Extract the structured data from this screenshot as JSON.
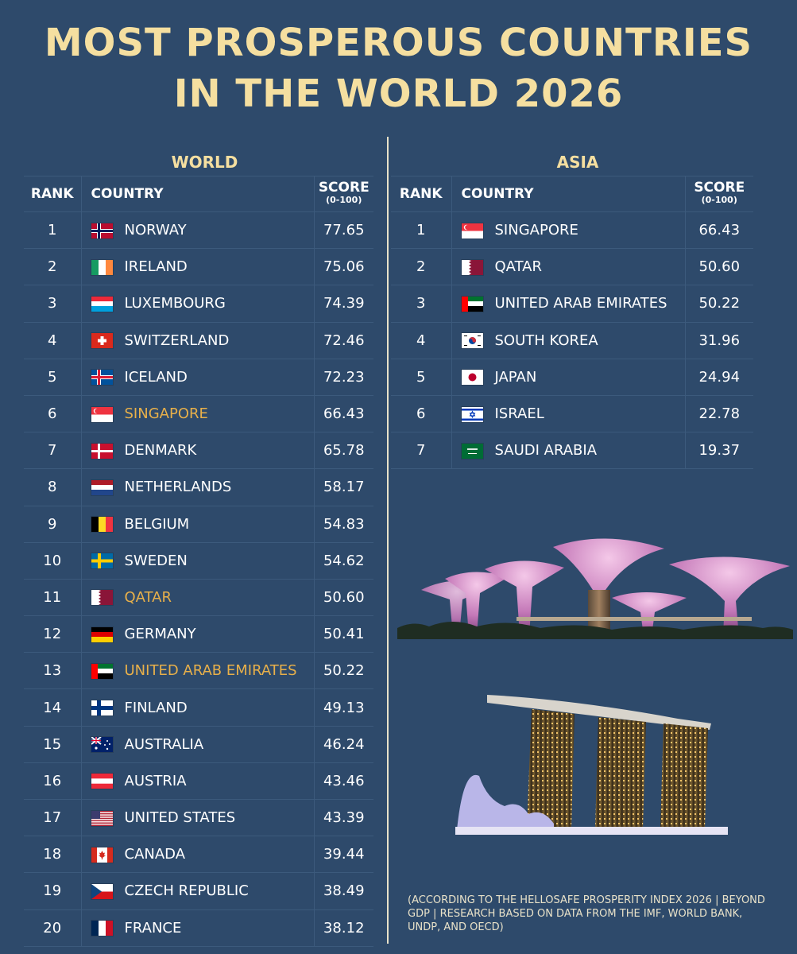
{
  "title_line1": "MOST PROSPEROUS COUNTRIES",
  "title_line2": "IN THE WORLD 2026",
  "highlight_color": "#e8b04a",
  "title_color": "#f5dfa0",
  "background_color": "#2e4a6b",
  "world": {
    "section_title": "WORLD",
    "headers": {
      "rank": "RANK",
      "country": "COUNTRY",
      "score": "SCORE",
      "score_range": "(0-100)"
    },
    "rows": [
      {
        "rank": "1",
        "country": "NORWAY",
        "score": "77.65",
        "flag": "norway-flag-icon",
        "highlight": false
      },
      {
        "rank": "2",
        "country": "IRELAND",
        "score": "75.06",
        "flag": "ireland-flag-icon",
        "highlight": false
      },
      {
        "rank": "3",
        "country": "LUXEMBOURG",
        "score": "74.39",
        "flag": "luxembourg-flag-icon",
        "highlight": false
      },
      {
        "rank": "4",
        "country": "SWITZERLAND",
        "score": "72.46",
        "flag": "switzerland-flag-icon",
        "highlight": false
      },
      {
        "rank": "5",
        "country": "ICELAND",
        "score": "72.23",
        "flag": "iceland-flag-icon",
        "highlight": false
      },
      {
        "rank": "6",
        "country": "SINGAPORE",
        "score": "66.43",
        "flag": "singapore-flag-icon",
        "highlight": true
      },
      {
        "rank": "7",
        "country": "DENMARK",
        "score": "65.78",
        "flag": "denmark-flag-icon",
        "highlight": false
      },
      {
        "rank": "8",
        "country": "NETHERLANDS",
        "score": "58.17",
        "flag": "netherlands-flag-icon",
        "highlight": false
      },
      {
        "rank": "9",
        "country": "BELGIUM",
        "score": "54.83",
        "flag": "belgium-flag-icon",
        "highlight": false
      },
      {
        "rank": "10",
        "country": "SWEDEN",
        "score": "54.62",
        "flag": "sweden-flag-icon",
        "highlight": false
      },
      {
        "rank": "11",
        "country": "QATAR",
        "score": "50.60",
        "flag": "qatar-flag-icon",
        "highlight": true
      },
      {
        "rank": "12",
        "country": "GERMANY",
        "score": "50.41",
        "flag": "germany-flag-icon",
        "highlight": false
      },
      {
        "rank": "13",
        "country": "UNITED ARAB EMIRATES",
        "score": "50.22",
        "flag": "uae-flag-icon",
        "highlight": true
      },
      {
        "rank": "14",
        "country": "FINLAND",
        "score": "49.13",
        "flag": "finland-flag-icon",
        "highlight": false
      },
      {
        "rank": "15",
        "country": "AUSTRALIA",
        "score": "46.24",
        "flag": "australia-flag-icon",
        "highlight": false
      },
      {
        "rank": "16",
        "country": "AUSTRIA",
        "score": "43.46",
        "flag": "austria-flag-icon",
        "highlight": false
      },
      {
        "rank": "17",
        "country": "UNITED STATES",
        "score": "43.39",
        "flag": "usa-flag-icon",
        "highlight": false
      },
      {
        "rank": "18",
        "country": "CANADA",
        "score": "39.44",
        "flag": "canada-flag-icon",
        "highlight": false
      },
      {
        "rank": "19",
        "country": "CZECH REPUBLIC",
        "score": "38.49",
        "flag": "czech-flag-icon",
        "highlight": false
      },
      {
        "rank": "20",
        "country": "FRANCE",
        "score": "38.12",
        "flag": "france-flag-icon",
        "highlight": false
      }
    ]
  },
  "asia": {
    "section_title": "ASIA",
    "headers": {
      "rank": "RANK",
      "country": "COUNTRY",
      "score": "SCORE",
      "score_range": "(0-100)"
    },
    "rows": [
      {
        "rank": "1",
        "country": "SINGAPORE",
        "score": "66.43",
        "flag": "singapore-flag-icon",
        "highlight": false
      },
      {
        "rank": "2",
        "country": "QATAR",
        "score": "50.60",
        "flag": "qatar-flag-icon",
        "highlight": false
      },
      {
        "rank": "3",
        "country": "UNITED ARAB EMIRATES",
        "score": "50.22",
        "flag": "uae-flag-icon",
        "highlight": false
      },
      {
        "rank": "4",
        "country": "SOUTH KOREA",
        "score": "31.96",
        "flag": "south-korea-flag-icon",
        "highlight": false
      },
      {
        "rank": "5",
        "country": "JAPAN",
        "score": "24.94",
        "flag": "japan-flag-icon",
        "highlight": false
      },
      {
        "rank": "6",
        "country": "ISRAEL",
        "score": "22.78",
        "flag": "israel-flag-icon",
        "highlight": false
      },
      {
        "rank": "7",
        "country": "SAUDI ARABIA",
        "score": "19.37",
        "flag": "saudi-arabia-flag-icon",
        "highlight": false
      }
    ]
  },
  "footnote": "(ACCORDING TO THE HELLOSAFE PROSPERITY INDEX 2026 | BEYOND GDP | RESEARCH BASED ON DATA FROM THE IMF, WORLD BANK, UNDP, AND OECD)",
  "images": {
    "top": "supertree-grove-photo",
    "bottom": "marina-bay-sands-photo"
  },
  "chart_data": [
    {
      "type": "table",
      "title": "WORLD",
      "columns": [
        "RANK",
        "COUNTRY",
        "SCORE (0-100)"
      ],
      "categories": [
        "NORWAY",
        "IRELAND",
        "LUXEMBOURG",
        "SWITZERLAND",
        "ICELAND",
        "SINGAPORE",
        "DENMARK",
        "NETHERLANDS",
        "BELGIUM",
        "SWEDEN",
        "QATAR",
        "GERMANY",
        "UNITED ARAB EMIRATES",
        "FINLAND",
        "AUSTRALIA",
        "AUSTRIA",
        "UNITED STATES",
        "CANADA",
        "CZECH REPUBLIC",
        "FRANCE"
      ],
      "values": [
        77.65,
        75.06,
        74.39,
        72.46,
        72.23,
        66.43,
        65.78,
        58.17,
        54.83,
        54.62,
        50.6,
        50.41,
        50.22,
        49.13,
        46.24,
        43.46,
        43.39,
        39.44,
        38.49,
        38.12
      ]
    },
    {
      "type": "table",
      "title": "ASIA",
      "columns": [
        "RANK",
        "COUNTRY",
        "SCORE (0-100)"
      ],
      "categories": [
        "SINGAPORE",
        "QATAR",
        "UNITED ARAB EMIRATES",
        "SOUTH KOREA",
        "JAPAN",
        "ISRAEL",
        "SAUDI ARABIA"
      ],
      "values": [
        66.43,
        50.6,
        50.22,
        31.96,
        24.94,
        22.78,
        19.37
      ]
    }
  ]
}
